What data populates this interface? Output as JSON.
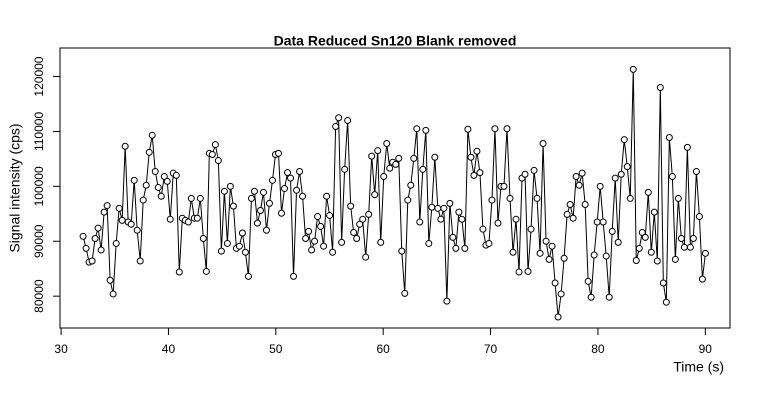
{
  "chart_data": {
    "type": "line",
    "title": "Data Reduced Sn120 Blank removed",
    "x_label": "Time (s)",
    "y_label": "Signal intensity (cps)",
    "x": [
      32.05,
      32.33,
      32.61,
      32.89,
      33.17,
      33.45,
      33.73,
      34.01,
      34.29,
      34.57,
      34.85,
      35.13,
      35.41,
      35.69,
      35.97,
      36.25,
      36.53,
      36.81,
      37.09,
      37.37,
      37.65,
      37.93,
      38.21,
      38.49,
      38.77,
      39.05,
      39.33,
      39.61,
      39.89,
      40.17,
      40.45,
      40.73,
      41.01,
      41.29,
      41.57,
      41.85,
      42.13,
      42.41,
      42.69,
      42.97,
      43.25,
      43.53,
      43.81,
      44.09,
      44.37,
      44.65,
      44.93,
      45.21,
      45.49,
      45.77,
      46.05,
      46.33,
      46.61,
      46.89,
      47.17,
      47.45,
      47.73,
      48.01,
      48.29,
      48.57,
      48.85,
      49.13,
      49.41,
      49.69,
      49.97,
      50.25,
      50.53,
      50.81,
      51.09,
      51.37,
      51.65,
      51.93,
      52.21,
      52.49,
      52.77,
      53.05,
      53.33,
      53.61,
      53.89,
      54.17,
      54.45,
      54.73,
      55.01,
      55.29,
      55.57,
      55.85,
      56.13,
      56.41,
      56.69,
      56.97,
      57.25,
      57.53,
      57.81,
      58.09,
      58.37,
      58.65,
      58.93,
      59.21,
      59.49,
      59.77,
      60.05,
      60.33,
      60.61,
      60.89,
      61.17,
      61.45,
      61.73,
      62.01,
      62.29,
      62.57,
      62.85,
      63.13,
      63.41,
      63.69,
      63.97,
      64.25,
      64.53,
      64.81,
      65.09,
      65.37,
      65.65,
      65.93,
      66.21,
      66.49,
      66.77,
      67.05,
      67.33,
      67.61,
      67.89,
      68.17,
      68.45,
      68.73,
      69.01,
      69.29,
      69.57,
      69.85,
      70.13,
      70.41,
      70.69,
      70.97,
      71.25,
      71.53,
      71.81,
      72.09,
      72.37,
      72.65,
      72.93,
      73.21,
      73.49,
      73.77,
      74.05,
      74.33,
      74.61,
      74.89,
      75.17,
      75.45,
      75.73,
      76.01,
      76.29,
      76.57,
      76.85,
      77.13,
      77.41,
      77.69,
      77.97,
      78.25,
      78.53,
      78.81,
      79.09,
      79.37,
      79.65,
      79.93,
      80.21,
      80.49,
      80.77,
      81.05,
      81.33,
      81.61,
      81.89,
      82.17,
      82.45,
      82.73,
      83.01,
      83.29,
      83.57,
      83.85,
      84.13,
      84.41,
      84.69,
      84.97,
      85.25,
      85.53,
      85.81,
      86.09,
      86.37,
      86.65,
      86.93,
      87.21,
      87.49,
      87.77,
      88.05,
      88.33,
      88.61,
      88.89,
      89.17,
      89.45,
      89.73,
      90.01
    ],
    "series": [
      {
        "color": "#000000",
        "values": [
          90900,
          88700,
          86200,
          86400,
          90500,
          92400,
          88400,
          95300,
          96500,
          82900,
          80400,
          89600,
          96000,
          93800,
          107300,
          93500,
          93100,
          101100,
          92000,
          86400,
          97500,
          100200,
          106200,
          109300,
          102700,
          99800,
          98200,
          101800,
          100900,
          94000,
          102400,
          102000,
          84400,
          94200,
          93800,
          93500,
          97800,
          94200,
          94200,
          97800,
          90500,
          84500,
          106000,
          105800,
          107600,
          104700,
          88200,
          99100,
          89600,
          100000,
          96400,
          88700,
          89100,
          91500,
          88000,
          83600,
          97800,
          99100,
          93300,
          95600,
          98900,
          92000,
          96900,
          101100,
          105800,
          106000,
          95100,
          99600,
          102500,
          101500,
          83600,
          99300,
          102700,
          98200,
          90500,
          91800,
          88400,
          90000,
          94500,
          92700,
          89100,
          98200,
          94700,
          88000,
          110900,
          112500,
          89800,
          103100,
          112000,
          96400,
          91600,
          90500,
          93100,
          94000,
          87100,
          94900,
          105500,
          98500,
          106500,
          89800,
          101800,
          107800,
          103300,
          104400,
          104000,
          105100,
          88200,
          80500,
          97500,
          100200,
          105100,
          110500,
          93500,
          103100,
          110200,
          89600,
          96200,
          105300,
          96000,
          94000,
          96000,
          79100,
          96900,
          90700,
          88700,
          95300,
          94000,
          88700,
          110400,
          105300,
          102000,
          106400,
          102500,
          92200,
          89300,
          89600,
          97500,
          110500,
          93300,
          100000,
          100000,
          110500,
          97800,
          88000,
          94000,
          84400,
          101500,
          102200,
          84500,
          92200,
          102900,
          97800,
          87800,
          107800,
          90000,
          86700,
          89100,
          82400,
          76200,
          80400,
          86900,
          94900,
          96700,
          94200,
          101800,
          100200,
          102400,
          96700,
          82700,
          79800,
          87500,
          93500,
          100000,
          93500,
          87300,
          79800,
          91800,
          101500,
          89800,
          102200,
          108500,
          103600,
          97800,
          121300,
          86500,
          88700,
          91600,
          90700,
          98900,
          88000,
          95300,
          86400,
          118000,
          82400,
          78900,
          108900,
          101800,
          86700,
          97800,
          90500,
          88900,
          107100,
          88900,
          90500,
          102700,
          94500,
          83100,
          87800
        ]
      }
    ],
    "xlim": [
      29.9,
      92.3
    ],
    "ylim": [
      74200,
      125200
    ],
    "xticks": [
      30,
      40,
      50,
      60,
      70,
      80,
      90
    ],
    "yticks": [
      80000,
      90000,
      100000,
      110000,
      120000
    ]
  }
}
